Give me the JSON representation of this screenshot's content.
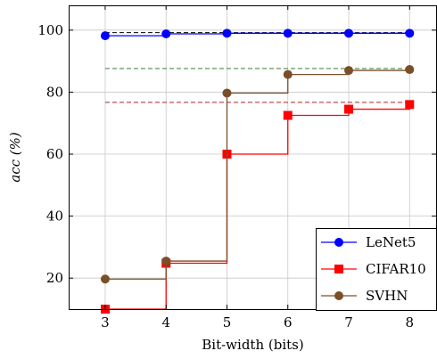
{
  "chart_data": {
    "type": "line",
    "line_shape": "step",
    "xlabel": "Bit-width (bits)",
    "ylabel": "acc (%)",
    "x": [
      3,
      4,
      5,
      6,
      7,
      8
    ],
    "xlim": [
      2.4,
      8.45
    ],
    "ylim": [
      10,
      108
    ],
    "xticks": [
      3,
      4,
      5,
      6,
      7,
      8
    ],
    "yticks": [
      20,
      40,
      60,
      80,
      100
    ],
    "grid": true,
    "legend_position": "bottom-right",
    "series": [
      {
        "name": "LeNet5",
        "color": "#0000ff",
        "marker": "circle",
        "values": [
          98.2,
          98.8,
          99.0,
          99.0,
          99.0,
          99.0
        ],
        "baseline": 99.2,
        "baseline_color": "#000000"
      },
      {
        "name": "CIFAR10",
        "color": "#ff0000",
        "marker": "square",
        "values": [
          10.0,
          24.8,
          60.0,
          72.5,
          74.5,
          76.0
        ],
        "baseline": 76.7,
        "baseline_color": "#aa0000"
      },
      {
        "name": "SVHN",
        "color": "#7a4f28",
        "marker": "circle",
        "values": [
          19.7,
          25.5,
          79.7,
          85.7,
          87.0,
          87.3
        ],
        "baseline": 87.6,
        "baseline_color": "#1e6a1e"
      }
    ]
  }
}
